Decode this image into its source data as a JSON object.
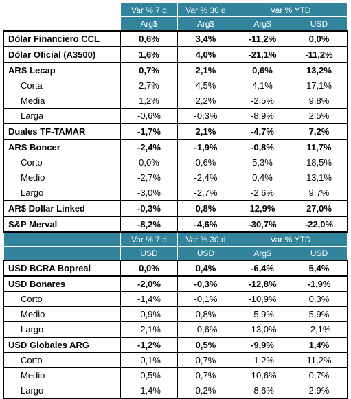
{
  "sections": [
    {
      "header": {
        "periods": [
          "Var % 7 d",
          "Var % 30 d",
          "Var % YTD"
        ],
        "currencies": [
          "Arg$",
          "Arg$",
          "Arg$",
          "USD"
        ]
      },
      "rows": [
        {
          "label": "Dólar Financiero CCL",
          "bold": true,
          "values": [
            "0,6%",
            "3,4%",
            "-11,2%",
            "0,0%"
          ]
        },
        {
          "label": "Dólar Oficial (A3500)",
          "bold": true,
          "values": [
            "1,6%",
            "4,0%",
            "-21,1%",
            "-11,2%"
          ]
        },
        {
          "label": "ARS Lecap",
          "bold": true,
          "values": [
            "0,7%",
            "2,1%",
            "0,6%",
            "13,2%"
          ]
        },
        {
          "label": "Corta",
          "bold": false,
          "values": [
            "2,7%",
            "4,5%",
            "4,1%",
            "17,1%"
          ]
        },
        {
          "label": "Media",
          "bold": false,
          "values": [
            "1,2%",
            "2,2%",
            "-2,5%",
            "9,8%"
          ]
        },
        {
          "label": "Larga",
          "bold": false,
          "values": [
            "-0,6%",
            "-0,3%",
            "-8,9%",
            "2,5%"
          ]
        },
        {
          "label": "Duales TF-TAMAR",
          "bold": true,
          "values": [
            "-1,7%",
            "2,1%",
            "-4,7%",
            "7,2%"
          ]
        },
        {
          "label": "ARS Boncer",
          "bold": true,
          "values": [
            "-2,4%",
            "-1,9%",
            "-0,8%",
            "11,7%"
          ]
        },
        {
          "label": "Corto",
          "bold": false,
          "values": [
            "0,0%",
            "0,6%",
            "5,3%",
            "18,5%"
          ]
        },
        {
          "label": "Medio",
          "bold": false,
          "values": [
            "-2,7%",
            "-2,4%",
            "0,4%",
            "13,1%"
          ]
        },
        {
          "label": "Largo",
          "bold": false,
          "values": [
            "-3,0%",
            "-2,7%",
            "-2,6%",
            "9,7%"
          ]
        },
        {
          "label": "AR$ Dollar Linked",
          "bold": true,
          "values": [
            "-0,3%",
            "0,8%",
            "12,9%",
            "27,0%"
          ]
        },
        {
          "label": "S&P Merval",
          "bold": true,
          "values": [
            "-8,2%",
            "-4,6%",
            "-30,7%",
            "-22,0%"
          ]
        }
      ]
    },
    {
      "header": {
        "periods": [
          "Var % 7 d",
          "Var % 30 d",
          "Var % YTD"
        ],
        "currencies": [
          "USD",
          "USD",
          "Arg$",
          "USD"
        ]
      },
      "rows": [
        {
          "label": "USD BCRA Bopreal",
          "bold": true,
          "values": [
            "0,0%",
            "0,4%",
            "-6,4%",
            "5,4%"
          ]
        },
        {
          "label": "USD Bonares",
          "bold": true,
          "values": [
            "-2,0%",
            "-0,3%",
            "-12,8%",
            "-1,9%"
          ]
        },
        {
          "label": "Corto",
          "bold": false,
          "values": [
            "-1,4%",
            "-0,1%",
            "-10,9%",
            "0,3%"
          ]
        },
        {
          "label": "Medio",
          "bold": false,
          "values": [
            "-0,9%",
            "0,8%",
            "-5,9%",
            "5,9%"
          ]
        },
        {
          "label": "Largo",
          "bold": false,
          "values": [
            "-2,1%",
            "-0,6%",
            "-13,0%",
            "-2,1%"
          ]
        },
        {
          "label": "USD Globales ARG",
          "bold": true,
          "values": [
            "-1,2%",
            "0,5%",
            "-9,9%",
            "1,4%"
          ]
        },
        {
          "label": "Corto",
          "bold": false,
          "values": [
            "-0,1%",
            "0,7%",
            "-1,2%",
            "11,2%"
          ]
        },
        {
          "label": "Medio",
          "bold": false,
          "values": [
            "-0,5%",
            "0,7%",
            "-10,6%",
            "0,7%"
          ]
        },
        {
          "label": "Largo",
          "bold": false,
          "values": [
            "-1,4%",
            "0,2%",
            "-8,6%",
            "2,9%"
          ]
        }
      ]
    }
  ]
}
